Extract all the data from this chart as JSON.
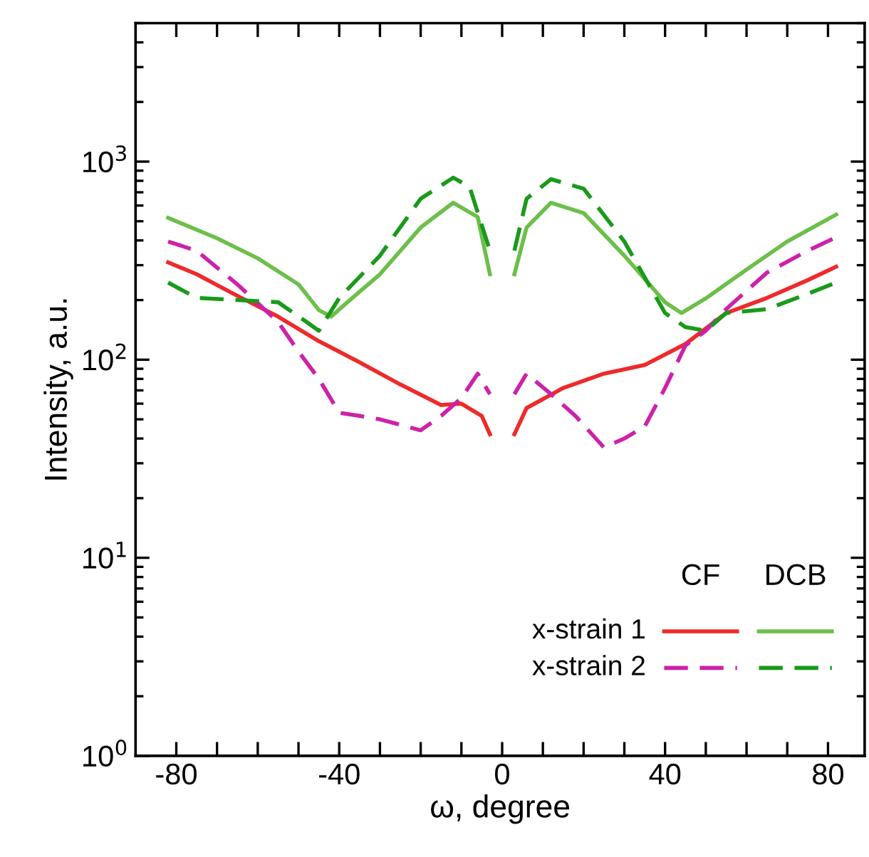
{
  "chart_data": {
    "type": "line",
    "xlabel": "ω, degree",
    "ylabel": "Intensity, a.u.",
    "log": "y",
    "xlim": [
      -90,
      89
    ],
    "ylim": [
      1,
      5000
    ],
    "xticks": [
      {
        "value": -80,
        "label": "-80"
      },
      {
        "value": -70,
        "label": null
      },
      {
        "value": -60,
        "label": null
      },
      {
        "value": -50,
        "label": null
      },
      {
        "value": -40,
        "label": "-40"
      },
      {
        "value": -30,
        "label": null
      },
      {
        "value": -20,
        "label": null
      },
      {
        "value": -10,
        "label": null
      },
      0,
      {
        "value": 10,
        "label": null
      },
      {
        "value": 20,
        "label": null
      },
      {
        "value": 30,
        "label": null
      },
      40,
      {
        "value": 50,
        "label": null
      },
      {
        "value": 60,
        "label": null
      },
      {
        "value": 70,
        "label": null
      },
      80
    ],
    "yticks": [
      {
        "value": 1,
        "label": "10$^{0}$"
      },
      {
        "value": 10,
        "label": "10$^{1}$"
      },
      {
        "value": 100,
        "label": "10$^{2}$"
      },
      {
        "value": 1000,
        "label": "10$^{3}$"
      }
    ],
    "grid": false,
    "legend": "bottom right",
    "marker": "none",
    "annotations": [
      "CF",
      "DCB"
    ],
    "series": [
      {
        "name": "x-strain 1",
        "color": "#ee2a2a",
        "line_style": "solid",
        "x": [
          -82,
          -75,
          -65,
          -55,
          -45,
          -35,
          -25,
          -15,
          -10,
          -5,
          -3,
          0,
          3,
          6,
          15,
          25,
          35,
          45,
          55,
          65,
          75,
          82
        ],
        "values": [
          310,
          270,
          210,
          165,
          124,
          97,
          75,
          59,
          60,
          52,
          42,
          null,
          42,
          57,
          72,
          85,
          94,
          120,
          172,
          205,
          252,
          295
        ]
      },
      {
        "name": "x-strain 2",
        "color": "#cc22aa",
        "line_style": "dashed",
        "x": [
          -82,
          -75,
          -65,
          -55,
          -50,
          -45,
          -40,
          -35,
          -30,
          -20,
          -15,
          -10,
          -6,
          -3,
          0,
          3,
          6,
          12,
          18,
          25,
          30,
          35,
          40,
          45,
          50,
          55,
          65,
          75,
          82
        ],
        "values": [
          395,
          355,
          240,
          155,
          110,
          80,
          54,
          52,
          50,
          44,
          52,
          64,
          85,
          67,
          null,
          67,
          85,
          67,
          52,
          36,
          40,
          46,
          72,
          118,
          140,
          180,
          275,
          355,
          415
        ]
      },
      {
        "color": "#6cbf4a",
        "line_style": "solid",
        "x": [
          -82,
          -70,
          -60,
          -50,
          -45,
          -42,
          -38,
          -30,
          -20,
          -12,
          -6,
          -3,
          0,
          3,
          6,
          12,
          20,
          30,
          40,
          44,
          50,
          60,
          70,
          82
        ],
        "values": [
          520,
          410,
          325,
          240,
          178,
          165,
          195,
          270,
          465,
          620,
          525,
          270,
          null,
          270,
          465,
          620,
          550,
          335,
          195,
          172,
          204,
          285,
          395,
          540
        ]
      },
      {
        "color": "#1a9a1a",
        "line_style": "dashed",
        "x": [
          -82,
          -75,
          -65,
          -55,
          -48,
          -45,
          -40,
          -30,
          -20,
          -12,
          -8,
          -3,
          0,
          3,
          6,
          12,
          20,
          30,
          40,
          45,
          50,
          55,
          65,
          75,
          82
        ],
        "values": [
          245,
          205,
          200,
          195,
          155,
          140,
          205,
          335,
          650,
          830,
          745,
          355,
          null,
          355,
          650,
          815,
          730,
          395,
          172,
          146,
          140,
          172,
          180,
          215,
          245
        ]
      }
    ]
  }
}
